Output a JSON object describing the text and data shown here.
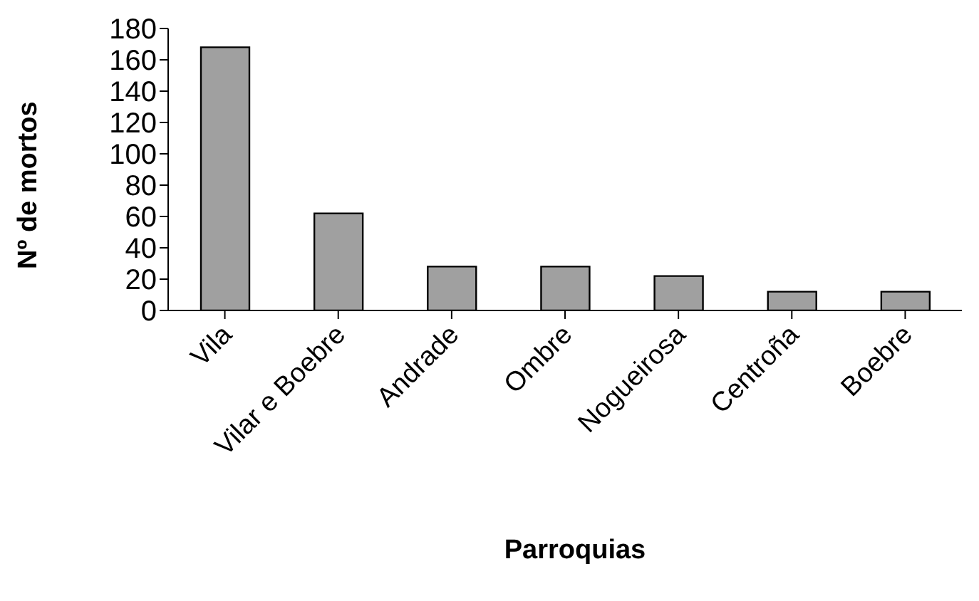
{
  "chart_data": {
    "type": "bar",
    "xlabel": "Parroquias",
    "ylabel": "Nº de mortos",
    "categories": [
      "Vila",
      "Vilar e Boebre",
      "Andrade",
      "Ombre",
      "Nogueirosa",
      "Centroña",
      "Boebre"
    ],
    "values": [
      168,
      62,
      28,
      28,
      22,
      12,
      12
    ],
    "color": "#a0a0a0",
    "ylim": [
      0,
      180
    ],
    "yticks": [
      0,
      20,
      40,
      60,
      80,
      100,
      120,
      140,
      160,
      180
    ],
    "grid": false,
    "legend": false
  }
}
